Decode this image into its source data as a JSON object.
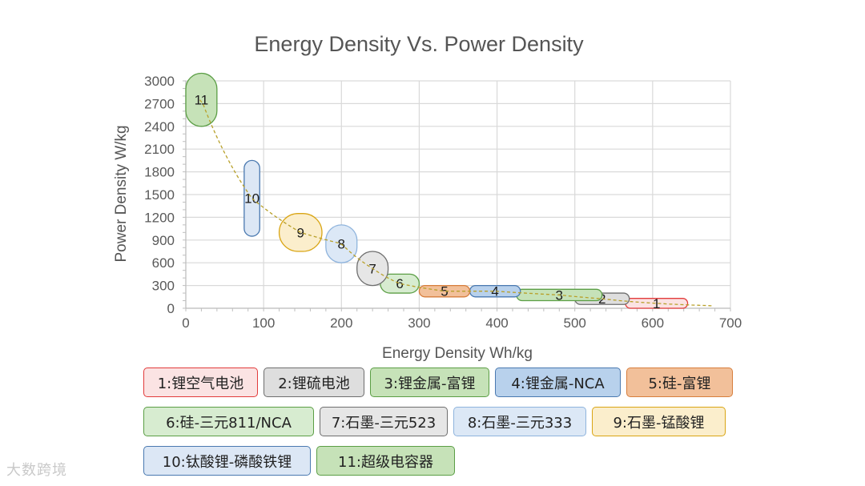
{
  "chart_data": {
    "type": "scatter",
    "title": "Energy Density Vs. Power Density",
    "xlabel": "Energy Density Wh/kg",
    "ylabel": "Power Density W/kg",
    "xlim": [
      0,
      700
    ],
    "ylim": [
      0,
      3000
    ],
    "x_ticks": [
      0,
      100,
      200,
      300,
      400,
      500,
      600,
      700
    ],
    "y_ticks": [
      0,
      300,
      600,
      900,
      1200,
      1500,
      1800,
      2100,
      2400,
      2700,
      3000
    ],
    "grid": true,
    "trendline": {
      "style": "dashed",
      "color": "#b8a02a"
    },
    "series": [
      {
        "id": "1",
        "label": "1:锂空气电池",
        "x_range": [
          565,
          645
        ],
        "y_range": [
          0,
          130
        ],
        "fill": "#fbe3e3",
        "stroke": "#e23b3b"
      },
      {
        "id": "2",
        "label": "2:锂硫电池",
        "x_range": [
          500,
          570
        ],
        "y_range": [
          50,
          200
        ],
        "fill": "#dedede",
        "stroke": "#6e6e6e"
      },
      {
        "id": "3",
        "label": "3:锂金属-富锂",
        "x_range": [
          425,
          535
        ],
        "y_range": [
          100,
          250
        ],
        "fill": "#c6e2b8",
        "stroke": "#5b9e45"
      },
      {
        "id": "4",
        "label": "4:锂金属-NCA",
        "x_range": [
          365,
          430
        ],
        "y_range": [
          150,
          300
        ],
        "fill": "#b8d1ec",
        "stroke": "#4a79b0"
      },
      {
        "id": "5",
        "label": "5:硅-富锂",
        "x_range": [
          300,
          365
        ],
        "y_range": [
          150,
          300
        ],
        "fill": "#f2c09a",
        "stroke": "#d77e3c"
      },
      {
        "id": "6",
        "label": "6:硅-三元811/NCA",
        "x_range": [
          250,
          300
        ],
        "y_range": [
          200,
          450
        ],
        "fill": "#d7ecd0",
        "stroke": "#5b9e45"
      },
      {
        "id": "7",
        "label": "7:石墨-三元523",
        "x_range": [
          220,
          260
        ],
        "y_range": [
          300,
          750
        ],
        "fill": "#e6e6e6",
        "stroke": "#6e6e6e"
      },
      {
        "id": "8",
        "label": "8:石墨-三元333",
        "x_range": [
          180,
          220
        ],
        "y_range": [
          600,
          1100
        ],
        "fill": "#dce8f6",
        "stroke": "#8fb4dd"
      },
      {
        "id": "9",
        "label": "9:石墨-锰酸锂",
        "x_range": [
          120,
          175
        ],
        "y_range": [
          750,
          1250
        ],
        "fill": "#fbeecc",
        "stroke": "#d9a514"
      },
      {
        "id": "10",
        "label": "10:钛酸锂-磷酸铁锂",
        "x_range": [
          75,
          95
        ],
        "y_range": [
          950,
          1950
        ],
        "fill": "#dce7f5",
        "stroke": "#4a79b0"
      },
      {
        "id": "11",
        "label": "11:超级电容器",
        "x_range": [
          0,
          40
        ],
        "y_range": [
          2400,
          3100
        ],
        "fill": "#c6e2b8",
        "stroke": "#5b9e45"
      }
    ],
    "legend_rows": [
      [
        "1",
        "2",
        "3",
        "4",
        "5"
      ],
      [
        "6",
        "7",
        "8",
        "9"
      ],
      [
        "10",
        "11"
      ]
    ]
  },
  "watermark": "大数跨境"
}
